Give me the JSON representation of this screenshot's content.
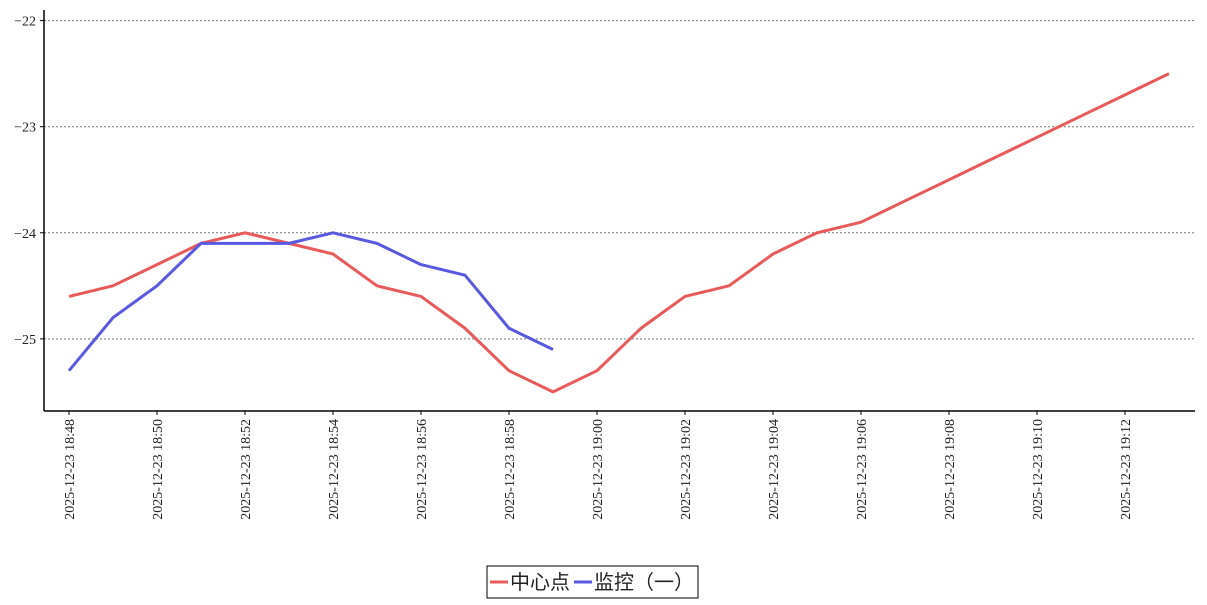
{
  "chart_data": {
    "type": "line",
    "categories": [
      "2025-12-23 18:48",
      null,
      "2025-12-23 18:50",
      null,
      "2025-12-23 18:52",
      null,
      "2025-12-23 18:54",
      null,
      "2025-12-23 18:56",
      null,
      "2025-12-23 18:58",
      null,
      "2025-12-23 19:00",
      null,
      "2025-12-23 19:02",
      null,
      "2025-12-23 19:04",
      null,
      "2025-12-23 19:06",
      null,
      "2025-12-23 19:08",
      null,
      "2025-12-23 19:10",
      null,
      "2025-12-23 19:12",
      null
    ],
    "series": [
      {
        "name": "中心点",
        "color": "#e85a5a",
        "values": [
          -24.6,
          -24.5,
          -24.3,
          -24.1,
          -24.0,
          -24.1,
          -24.2,
          -24.5,
          -24.6,
          -24.9,
          -25.3,
          -25.5,
          -25.3,
          -24.9,
          -24.6,
          -24.5,
          -24.2,
          -24.0,
          -23.9,
          -23.7,
          -23.5,
          -23.3,
          -23.1,
          -22.9,
          -22.7,
          -22.5
        ]
      },
      {
        "name": "监控（一）",
        "color": "#5858e0",
        "values": [
          -25.3,
          -24.8,
          -24.5,
          -24.1,
          -24.1,
          -24.1,
          -24.0,
          -24.1,
          -24.3,
          -24.4,
          -24.9,
          -25.1,
          null,
          null,
          null,
          null,
          null,
          null,
          null,
          null,
          null,
          null,
          null,
          null,
          null,
          null
        ]
      }
    ],
    "ylim": [
      -25.68,
      -21.9
    ],
    "yticks": [
      {
        "value": -25,
        "label": "−25"
      },
      {
        "value": -24,
        "label": "−24"
      },
      {
        "value": -23,
        "label": "−23"
      },
      {
        "value": -22,
        "label": "−22"
      }
    ],
    "grid": true,
    "legend": "bottom"
  }
}
